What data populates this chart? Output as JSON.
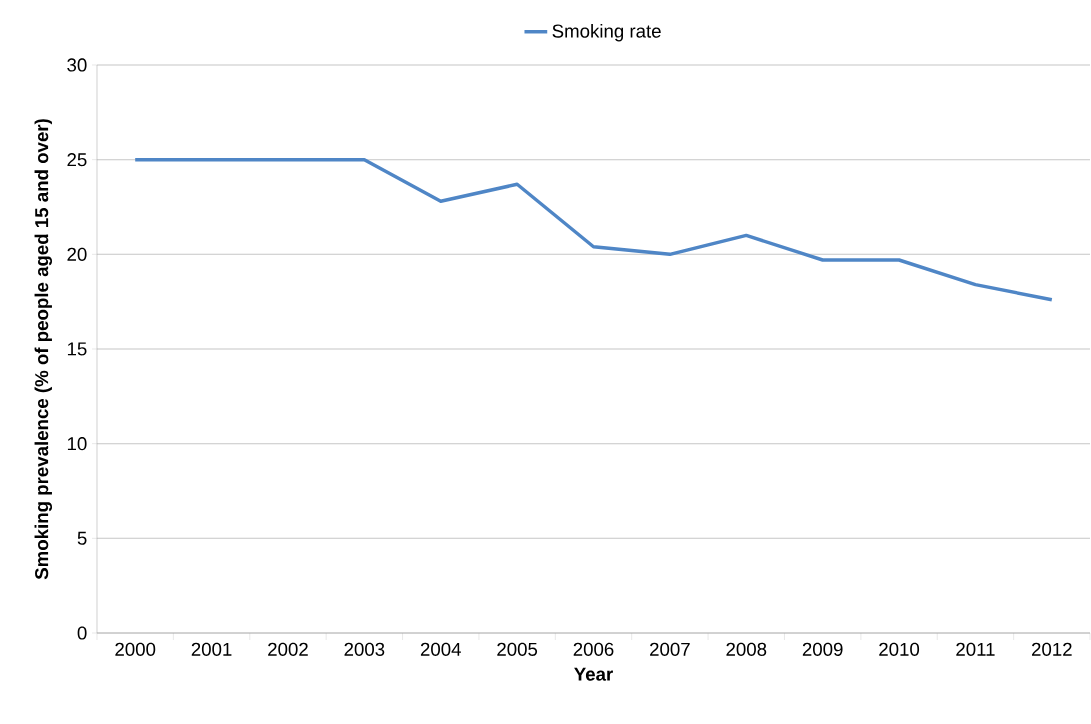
{
  "chart_data": {
    "type": "line",
    "xlabel": "Year",
    "ylabel": "Smoking prevalence (% of people aged 15 and over)",
    "categories": [
      "2000",
      "2001",
      "2002",
      "2003",
      "2004",
      "2005",
      "2006",
      "2007",
      "2008",
      "2009",
      "2010",
      "2011",
      "2012"
    ],
    "series": [
      {
        "name": "Smoking rate",
        "color": "#4f86c6",
        "values": [
          25,
          25,
          25,
          25,
          22.8,
          23.7,
          20.4,
          20.0,
          21.0,
          19.7,
          19.7,
          18.4,
          17.6
        ]
      }
    ],
    "ylim": [
      0,
      30
    ],
    "yticks": [
      0,
      5,
      10,
      15,
      20,
      25,
      30
    ],
    "grid": "y",
    "legend": "top"
  }
}
